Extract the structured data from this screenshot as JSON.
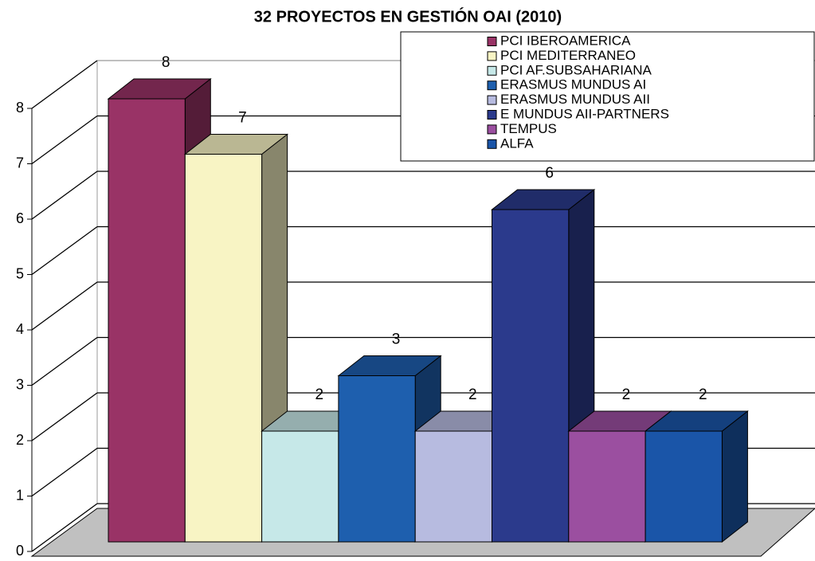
{
  "chart_data": {
    "type": "bar3d",
    "title": "32 PROYECTOS EN GESTIÓN OAI (2010)",
    "series": [
      {
        "name": "PCI IBEROAMERICA",
        "color": "#993366",
        "values": [
          8
        ]
      },
      {
        "name": "PCI MEDITERRANEO",
        "color": "#f8f4c4",
        "values": [
          7
        ]
      },
      {
        "name": "PCI AF.SUBSAHARIANA",
        "color": "#c6e8e8",
        "values": [
          2
        ]
      },
      {
        "name": "ERASMUS MUNDUS AI",
        "color": "#1e5fae",
        "values": [
          3
        ]
      },
      {
        "name": "ERASMUS MUNDUS AII",
        "color": "#b7bbe0",
        "values": [
          2
        ]
      },
      {
        "name": "E MUNDUS AII-PARTNERS",
        "color": "#2b3a8c",
        "values": [
          6
        ]
      },
      {
        "name": "TEMPUS",
        "color": "#9b4fa0",
        "values": [
          2
        ]
      },
      {
        "name": "ALFA",
        "color": "#1a55a8",
        "values": [
          2
        ]
      }
    ],
    "ylim": [
      0,
      8
    ],
    "yticks": [
      0,
      1,
      2,
      3,
      4,
      5,
      6,
      7,
      8
    ],
    "grid": true,
    "legend": "top-right"
  }
}
